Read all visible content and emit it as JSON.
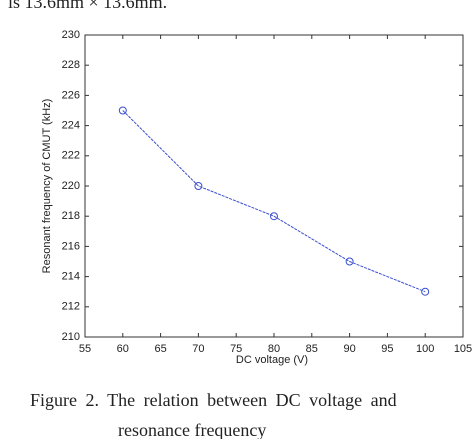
{
  "top_text": "is 13.6mm × 13.6mm.",
  "caption": [
    "Figure 2. The relation between DC voltage and",
    "resonance frequency"
  ],
  "chart_data": {
    "type": "line",
    "x_label": "DC voltage (V)",
    "y_label": "Resonant frequency of CMUT (kHz)",
    "x": [
      60,
      70,
      80,
      90,
      100
    ],
    "series": [
      {
        "color": "#3a4fd0",
        "values": [
          225,
          220,
          218,
          215,
          213
        ]
      }
    ],
    "xlim": [
      55,
      105
    ],
    "xticks": [
      55,
      60,
      65,
      70,
      75,
      80,
      85,
      90,
      95,
      100,
      105
    ],
    "ylim": [
      210,
      230
    ],
    "yticks": [
      210,
      212,
      214,
      216,
      218,
      220,
      222,
      224,
      226,
      228,
      230
    ]
  }
}
